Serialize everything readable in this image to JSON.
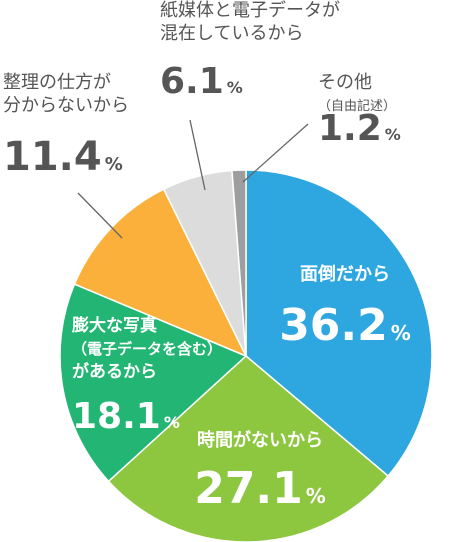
{
  "chart_data": {
    "type": "pie",
    "slices": [
      {
        "label_lines": [
          "面倒だから"
        ],
        "value": 36.2,
        "value_text": "36.2",
        "unit": "%",
        "color": "#2ea7e0"
      },
      {
        "label_lines": [
          "時間がないから"
        ],
        "value": 27.1,
        "value_text": "27.1",
        "unit": "%",
        "color": "#8dc63f"
      },
      {
        "label_lines": [
          "膨大な写真",
          "（電子データを含む）",
          "があるから"
        ],
        "value": 18.1,
        "value_text": "18.1",
        "unit": "%",
        "color": "#22b573"
      },
      {
        "label_lines": [
          "整理の仕方が",
          "分からないから"
        ],
        "value": 11.4,
        "value_text": "11.4",
        "unit": "%",
        "color": "#fbb03b"
      },
      {
        "label_lines": [
          "紙媒体と電子データが",
          "混在しているから"
        ],
        "value": 6.1,
        "value_text": "6.1",
        "unit": "%",
        "color": "#dcdcdc"
      },
      {
        "label_lines": [
          "その他",
          "（自由記述）"
        ],
        "value": 1.2,
        "value_text": "1.2",
        "unit": "%",
        "color": "#9e9e9e"
      }
    ],
    "start_angle_deg": 0,
    "direction": "clockwise",
    "legend": "none"
  }
}
